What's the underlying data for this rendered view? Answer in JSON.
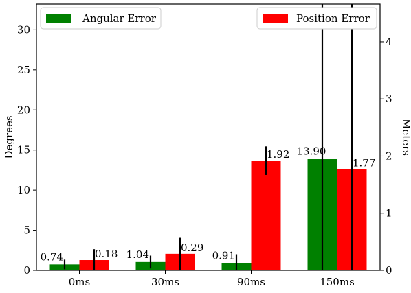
{
  "chart_data": {
    "type": "bar",
    "categories": [
      "0ms",
      "30ms",
      "90ms",
      "150ms"
    ],
    "left_axis": {
      "label": "Degrees",
      "ylim": [
        0,
        33.2
      ],
      "ticks": [
        0,
        5,
        10,
        15,
        20,
        25,
        30
      ],
      "tick_labels": [
        "0",
        "5",
        "10",
        "15",
        "20",
        "25",
        "30"
      ]
    },
    "right_axis": {
      "label": "Meters",
      "ylim": [
        0,
        4.66
      ],
      "ticks": [
        0,
        1,
        2,
        3,
        4
      ],
      "tick_labels": [
        "0",
        "1",
        "2",
        "3",
        "4"
      ]
    },
    "series": [
      {
        "name": "Angular Error",
        "axis": "left",
        "color": "#008000",
        "values": [
          0.74,
          1.04,
          0.91,
          13.9
        ],
        "errors": [
          0.6,
          0.8,
          1.1,
          32.0
        ],
        "value_labels": [
          "0.74",
          "1.04",
          "0.91",
          "13.90"
        ]
      },
      {
        "name": "Position Error",
        "axis": "right",
        "color": "#ff0000",
        "values": [
          0.18,
          0.29,
          1.92,
          1.77
        ],
        "errors": [
          0.19,
          0.28,
          0.25,
          3.5
        ],
        "value_labels": [
          "0.18",
          "0.29",
          "1.92",
          "1.77"
        ]
      }
    ],
    "legend": [
      {
        "name": "Angular Error",
        "placement": "top-left",
        "color": "#008000"
      },
      {
        "name": "Position Error",
        "placement": "top-right",
        "color": "#ff0000"
      }
    ]
  }
}
